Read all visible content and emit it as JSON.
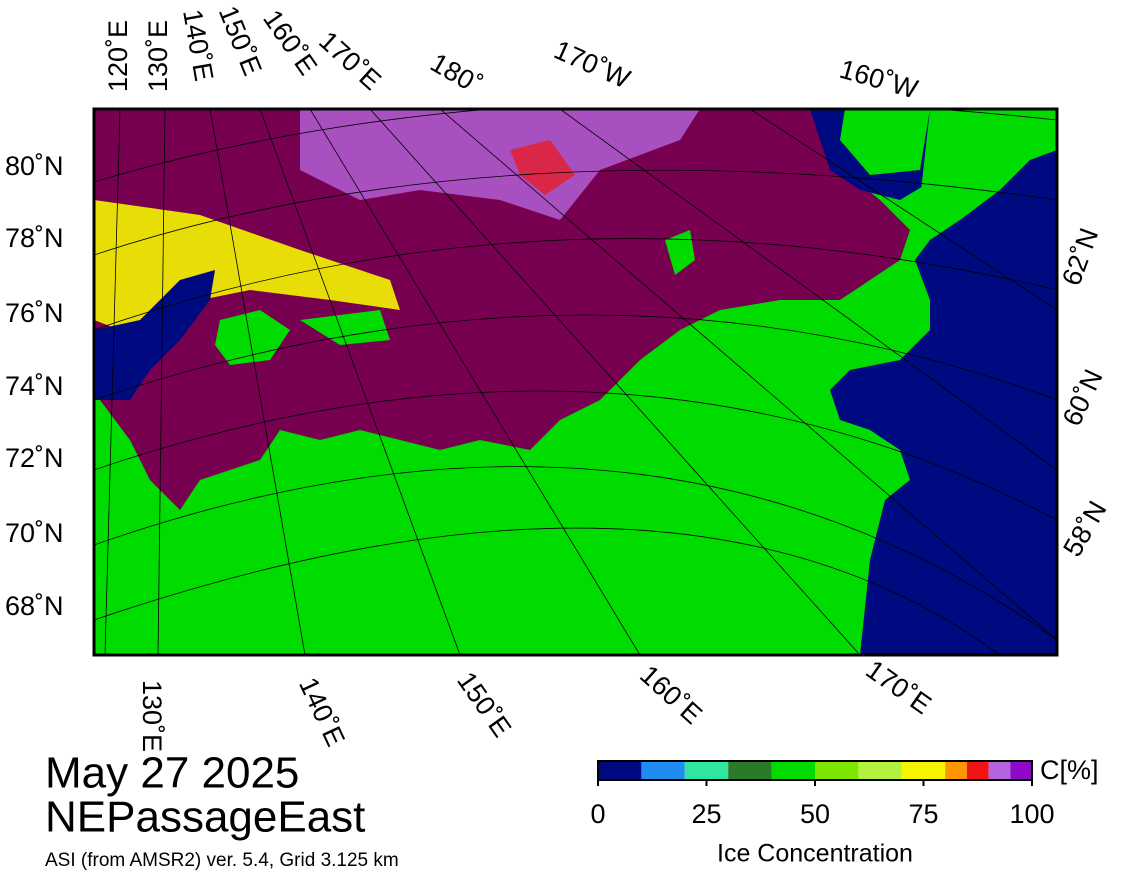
{
  "map": {
    "top_labels": [
      "120˚E",
      "130˚E",
      "140˚E",
      "150˚E",
      "160˚E",
      "170˚E",
      "180˚",
      "170˚W",
      "160˚W"
    ],
    "left_labels": [
      "80˚N",
      "78˚N",
      "76˚N",
      "74˚N",
      "72˚N",
      "70˚N",
      "68˚N"
    ],
    "right_labels": [
      "62˚N",
      "60˚N",
      "58˚N"
    ],
    "bottom_labels": [
      "130˚E",
      "140˚E",
      "150˚E",
      "160˚E",
      "170˚E"
    ]
  },
  "legend": {
    "unit": "C[%]",
    "title": "Ice Concentration",
    "bounds": [
      0,
      10,
      20,
      30,
      40,
      50,
      60,
      70,
      80,
      85,
      90,
      95,
      100
    ],
    "colors": [
      "#000a80",
      "#1e8cf0",
      "#2ee6a0",
      "#2a7a2a",
      "#00dc00",
      "#7ce600",
      "#b4f040",
      "#f5f500",
      "#ff9600",
      "#f01414",
      "#b464dc",
      "#8c0ac8"
    ],
    "ticks": [
      0,
      25,
      50,
      75,
      100
    ]
  },
  "caption": {
    "date": "May 27 2025",
    "region": "NEPassageEast",
    "source": "ASI (from AMSR2) ver. 5.4,  Grid 3.125 km"
  }
}
